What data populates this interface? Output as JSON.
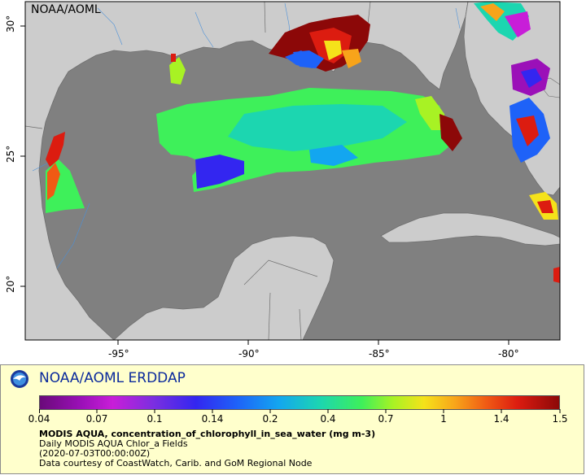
{
  "map": {
    "corner_label": "NOAA/AOML",
    "x_ticks": [
      "-95°",
      "-90°",
      "-85°",
      "-80°"
    ],
    "y_ticks": [
      "30°",
      "25°",
      "20°"
    ],
    "colors": {
      "land": "#cccccc",
      "ocean_nodata": "#808080",
      "border": "#6e6e6e"
    }
  },
  "legend": {
    "title": "NOAA/AOML ERDDAP",
    "colorbar_labels": [
      "0.04",
      "0.07",
      "0.1",
      "0.14",
      "0.2",
      "0.4",
      "0.7",
      "1",
      "1.4",
      "1.5"
    ],
    "variable": "MODIS AQUA, concentration_of_chlorophyll_in_sea_water (mg m-3)",
    "dataset": "Daily MODIS AQUA Chlor_a Fields",
    "time": "(2020-07-03T00:00:00Z)",
    "credit": "Data courtesy of CoastWatch, Carib. and GoM Regional Node"
  },
  "logo": {
    "name": "noaa-logo",
    "colors": {
      "outer": "#1a3a9c",
      "inner": "#3e8fe0",
      "bird": "#ffffff"
    }
  }
}
